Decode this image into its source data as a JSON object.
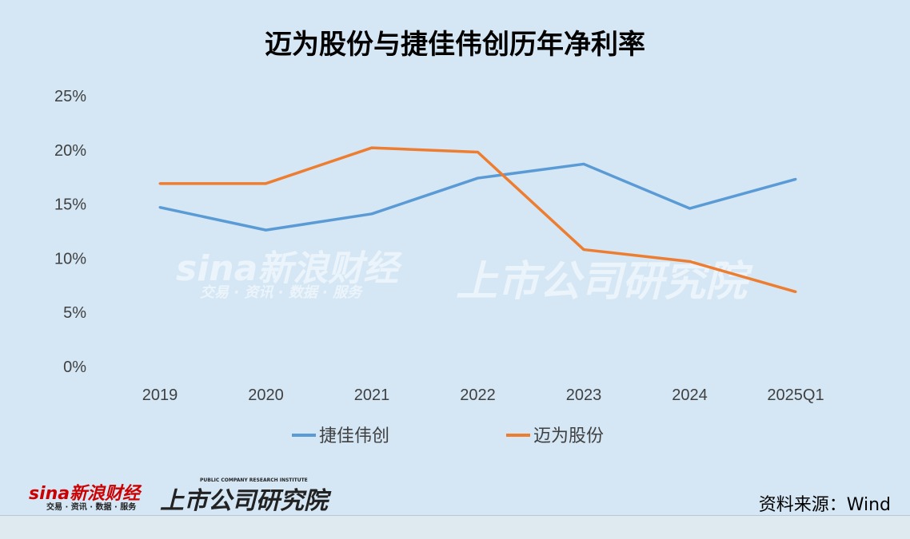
{
  "chart_data": {
    "type": "line",
    "title": "迈为股份与捷佳伟创历年净利率",
    "categories": [
      "2019",
      "2020",
      "2021",
      "2022",
      "2023",
      "2024",
      "2025Q1"
    ],
    "series": [
      {
        "name": "捷佳伟创",
        "color": "#5b9bd5",
        "values": [
          14.7,
          12.6,
          14.1,
          17.4,
          18.7,
          14.6,
          17.3
        ]
      },
      {
        "name": "迈为股份",
        "color": "#ed7d31",
        "values": [
          16.9,
          16.9,
          20.2,
          19.8,
          10.8,
          9.7,
          6.9
        ]
      }
    ],
    "yticks": [
      "0%",
      "5%",
      "10%",
      "15%",
      "20%",
      "25%"
    ],
    "ylim": [
      0,
      25
    ],
    "grid": false,
    "legend": "bottom"
  },
  "watermark": {
    "brand": "sina新浪财经",
    "tagline": "交易 · 资讯 · 数据 · 服务",
    "institute": "上市公司研究院",
    "institute_en": "PUBLIC COMPANY RESEARCH INSTITUTE"
  },
  "source": "资料来源：Wind"
}
